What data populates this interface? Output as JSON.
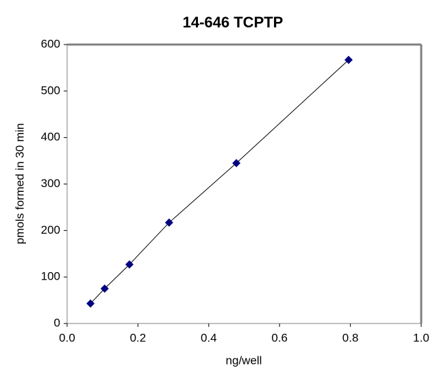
{
  "chart_data": {
    "type": "scatter",
    "title": "14-646 TCPTP",
    "x_label": "ng/well",
    "y_label": "pmols formed in 30 min",
    "series": [
      {
        "color": "#000080",
        "x": [
          0.066,
          0.106,
          0.176,
          0.288,
          0.478,
          0.795
        ],
        "values": [
          43,
          75,
          127,
          217,
          345,
          567
        ]
      }
    ],
    "trendline": true,
    "trendline_color": "#000000",
    "xlim": [
      0,
      1
    ],
    "ylim": [
      0,
      600
    ],
    "xticks": [
      {
        "value": 0,
        "label": "0.0"
      },
      0.2,
      0.4,
      0.6,
      0.8,
      {
        "value": 1,
        "label": "1.0"
      }
    ],
    "yticks": [
      0,
      100,
      200,
      300,
      400,
      500,
      600
    ]
  }
}
